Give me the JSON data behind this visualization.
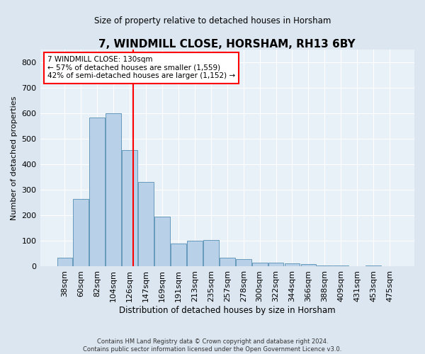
{
  "title": "7, WINDMILL CLOSE, HORSHAM, RH13 6BY",
  "subtitle": "Size of property relative to detached houses in Horsham",
  "xlabel": "Distribution of detached houses by size in Horsham",
  "ylabel": "Number of detached properties",
  "bar_labels": [
    "38sqm",
    "60sqm",
    "82sqm",
    "104sqm",
    "126sqm",
    "147sqm",
    "169sqm",
    "191sqm",
    "213sqm",
    "235sqm",
    "257sqm",
    "278sqm",
    "300sqm",
    "322sqm",
    "344sqm",
    "366sqm",
    "388sqm",
    "409sqm",
    "431sqm",
    "453sqm",
    "475sqm"
  ],
  "bar_values": [
    35,
    265,
    585,
    600,
    455,
    330,
    195,
    90,
    100,
    105,
    35,
    30,
    16,
    16,
    12,
    10,
    5,
    5,
    0,
    5,
    0
  ],
  "bar_color": "#b8d0e8",
  "bar_edge_color": "#6699bb",
  "vline_color": "red",
  "annotation_text": "7 WINDMILL CLOSE: 130sqm\n← 57% of detached houses are smaller (1,559)\n42% of semi-detached houses are larger (1,152) →",
  "annotation_box_color": "white",
  "annotation_box_edge_color": "red",
  "ylim": [
    0,
    850
  ],
  "yticks": [
    0,
    100,
    200,
    300,
    400,
    500,
    600,
    700,
    800
  ],
  "footer": "Contains HM Land Registry data © Crown copyright and database right 2024.\nContains public sector information licensed under the Open Government Licence v3.0.",
  "background_color": "#dce6f0",
  "axes_bg_color": "#e8f0f8",
  "grid_color": "white"
}
